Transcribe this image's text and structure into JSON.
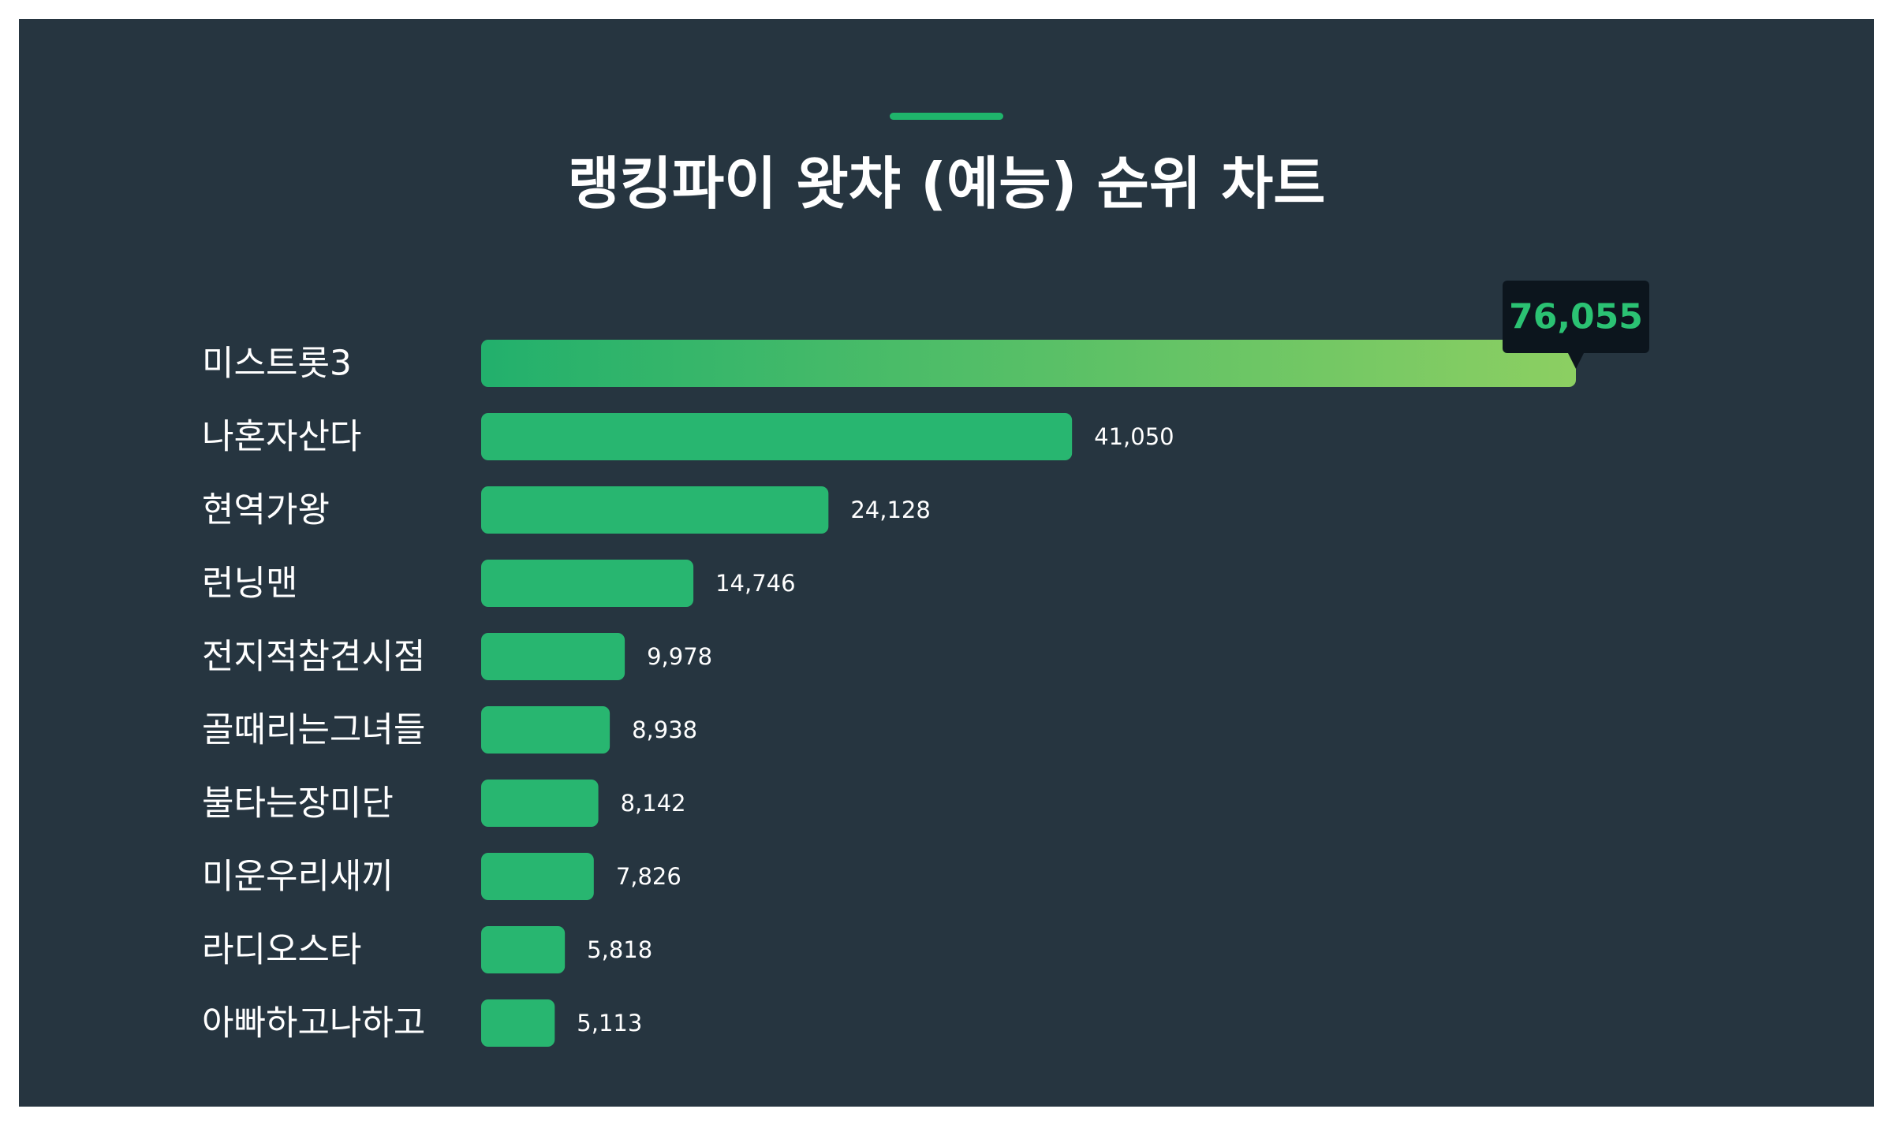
{
  "title": "랭킹파이 왓챠 (예능) 순위 차트",
  "colors": {
    "background": "#263540",
    "bar": "#28b670",
    "bar_gradient_start": "#22b06c",
    "bar_gradient_end": "#8ccf62",
    "accent": "#1fb46b",
    "tooltip_bg": "#0c151d",
    "tooltip_text": "#2bc273",
    "label_text": "#ffffff"
  },
  "chart_data": {
    "type": "bar",
    "orientation": "horizontal",
    "title": "랭킹파이 왓챠 (예능) 순위 차트",
    "categories": [
      "미스트롯3",
      "나혼자산다",
      "현역가왕",
      "런닝맨",
      "전지적참견시점",
      "골때리는그녀들",
      "불타는장미단",
      "미운우리새끼",
      "라디오스타",
      "아빠하고나하고"
    ],
    "values": [
      76055,
      41050,
      24128,
      14746,
      9978,
      8938,
      8142,
      7826,
      5818,
      5113
    ],
    "value_labels": [
      "76,055",
      "41,050",
      "24,128",
      "14,746",
      "9,978",
      "8,938",
      "8,142",
      "7,826",
      "5,818",
      "5,113"
    ],
    "highlighted_index": 0,
    "grid": false,
    "legend": "none"
  }
}
